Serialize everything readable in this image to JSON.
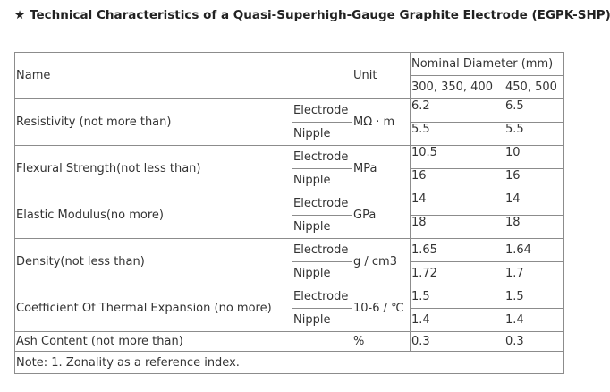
{
  "title": {
    "star": "★",
    "text": "Technical Characteristics of a Quasi-Superhigh-Gauge Graphite Electrode (EGPK-SHP)"
  },
  "header": {
    "name": "Name",
    "unit": "Unit",
    "nominal": "Nominal Diameter (mm)",
    "col1": "300, 350, 400",
    "col2": "450, 500"
  },
  "rows": [
    {
      "name": "Resistivity (not more than)",
      "unit": "MΩ · m",
      "electrode_label": "Electrode",
      "nipple_label": "Nipple",
      "electrode": [
        "6.2",
        "6.5"
      ],
      "nipple": [
        "5.5",
        "5.5"
      ]
    },
    {
      "name": "Flexural Strength(not less than)",
      "unit": "MPa",
      "electrode_label": "Electrode",
      "nipple_label": "Nipple",
      "electrode": [
        "10.5",
        "10"
      ],
      "nipple": [
        "16",
        "16"
      ]
    },
    {
      "name": "Elastic Modulus(no more)",
      "unit": "GPa",
      "electrode_label": "Electrode",
      "nipple_label": "Nipple",
      "electrode": [
        "14",
        "14"
      ],
      "nipple": [
        "18",
        "18"
      ]
    },
    {
      "name": "Density(not less than)",
      "unit": "g / cm3",
      "electrode_label": "Electrode",
      "nipple_label": "Nipple",
      "electrode": [
        "1.65",
        "1.64"
      ],
      "nipple": [
        "1.72",
        "1.7"
      ]
    },
    {
      "name": "Coefficient Of Thermal Expansion (no more)",
      "unit": "10-6 / ℃",
      "electrode_label": "Electrode",
      "nipple_label": "Nipple",
      "electrode": [
        "1.5",
        "1.5"
      ],
      "nipple": [
        "1.4",
        "1.4"
      ]
    }
  ],
  "ash": {
    "name": "Ash Content (not more than)",
    "unit": "%",
    "values": [
      "0.3",
      "0.3"
    ]
  },
  "note": "Note: 1. Zonality as a reference index."
}
